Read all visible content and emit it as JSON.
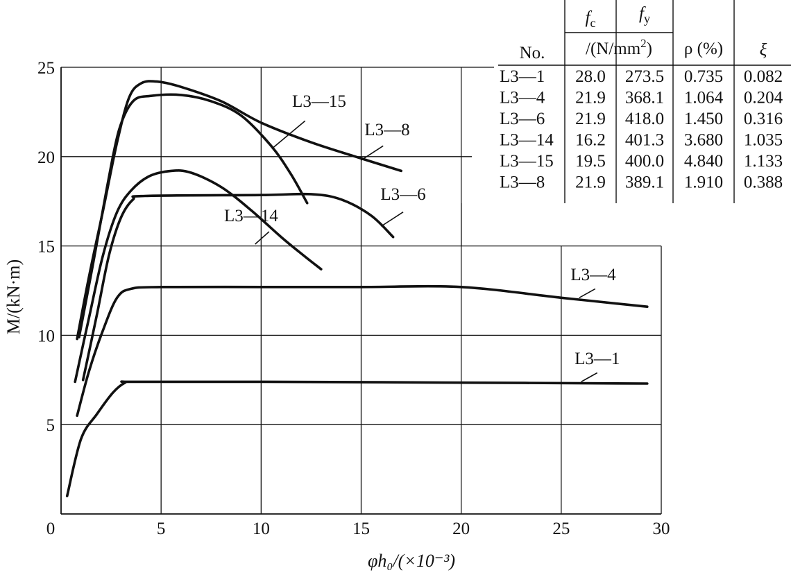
{
  "chart_data": {
    "type": "line",
    "xlabel": "φh₀/(×10⁻³)",
    "ylabel": "M/(kN·m)",
    "x_ticks": [
      "0",
      "5",
      "10",
      "15",
      "20",
      "25",
      "30"
    ],
    "y_ticks": [
      "5",
      "10",
      "15",
      "20",
      "25"
    ],
    "xlim": [
      0,
      30
    ],
    "ylim": [
      0,
      25
    ],
    "grid": true,
    "series": [
      {
        "name": "L3—1",
        "points": [
          [
            0.3,
            1.0
          ],
          [
            1.0,
            4.2
          ],
          [
            1.8,
            5.6
          ],
          [
            2.6,
            6.8
          ],
          [
            3.2,
            7.35
          ],
          [
            3.6,
            7.4
          ],
          [
            10,
            7.4
          ],
          [
            20,
            7.35
          ],
          [
            29.3,
            7.3
          ]
        ]
      },
      {
        "name": "L3—4",
        "points": [
          [
            0.8,
            5.5
          ],
          [
            1.4,
            8.0
          ],
          [
            2.1,
            10.3
          ],
          [
            2.8,
            12.1
          ],
          [
            3.5,
            12.6
          ],
          [
            5,
            12.7
          ],
          [
            10,
            12.7
          ],
          [
            15,
            12.7
          ],
          [
            20,
            12.7
          ],
          [
            25,
            12.1
          ],
          [
            29.3,
            11.6
          ]
        ]
      },
      {
        "name": "L3—6",
        "points": [
          [
            1.1,
            7.5
          ],
          [
            1.8,
            11.2
          ],
          [
            2.4,
            14.5
          ],
          [
            3.0,
            16.6
          ],
          [
            3.6,
            17.6
          ],
          [
            4.2,
            17.8
          ],
          [
            10,
            17.85
          ],
          [
            12.5,
            17.9
          ],
          [
            14,
            17.6
          ],
          [
            15.5,
            16.7
          ],
          [
            16.6,
            15.5
          ]
        ]
      },
      {
        "name": "L3—14",
        "points": [
          [
            0.7,
            7.4
          ],
          [
            1.4,
            11.0
          ],
          [
            2.1,
            14.5
          ],
          [
            2.8,
            16.9
          ],
          [
            3.5,
            18.1
          ],
          [
            4.4,
            18.9
          ],
          [
            5.5,
            19.2
          ],
          [
            6.5,
            19.1
          ],
          [
            8,
            18.3
          ],
          [
            9.5,
            17.0
          ],
          [
            11,
            15.5
          ],
          [
            12.2,
            14.4
          ],
          [
            13,
            13.7
          ]
        ]
      },
      {
        "name": "L3—15",
        "points": [
          [
            0.9,
            9.9
          ],
          [
            1.6,
            14.0
          ],
          [
            2.3,
            18.3
          ],
          [
            2.9,
            21.5
          ],
          [
            3.6,
            23.1
          ],
          [
            4.5,
            23.4
          ],
          [
            6,
            23.45
          ],
          [
            7.5,
            23.1
          ],
          [
            9,
            22.3
          ],
          [
            10.5,
            20.6
          ],
          [
            11.5,
            19.0
          ],
          [
            12.3,
            17.4
          ]
        ]
      },
      {
        "name": "L3—8",
        "points": [
          [
            0.8,
            9.8
          ],
          [
            1.4,
            13.3
          ],
          [
            2.1,
            17.0
          ],
          [
            2.8,
            20.8
          ],
          [
            3.4,
            23.3
          ],
          [
            4.0,
            24.1
          ],
          [
            4.8,
            24.2
          ],
          [
            6,
            23.9
          ],
          [
            8,
            23.1
          ],
          [
            10,
            21.9
          ],
          [
            12.5,
            20.8
          ],
          [
            15,
            19.9
          ],
          [
            17,
            19.2
          ]
        ]
      }
    ],
    "labels": [
      {
        "text": "L3—15",
        "x": 12.9,
        "y": 23.1,
        "leader": [
          [
            12.2,
            22.0
          ],
          [
            10.6,
            20.5
          ]
        ]
      },
      {
        "text": "L3—8",
        "x": 16.3,
        "y": 21.5,
        "leader": [
          [
            16.1,
            20.6
          ],
          [
            15.0,
            19.8
          ]
        ]
      },
      {
        "text": "L3—6",
        "x": 17.1,
        "y": 17.9,
        "leader": [
          [
            17.1,
            16.9
          ],
          [
            16.0,
            16.1
          ]
        ]
      },
      {
        "text": "L3—14",
        "x": 9.5,
        "y": 16.7,
        "leader": [
          [
            10.4,
            15.8
          ],
          [
            9.7,
            15.1
          ]
        ]
      },
      {
        "text": "L3—4",
        "x": 26.6,
        "y": 13.4,
        "leader": [
          [
            26.7,
            12.6
          ],
          [
            25.9,
            12.1
          ]
        ]
      },
      {
        "text": "L3—1",
        "x": 26.8,
        "y": 8.7,
        "leader": [
          [
            26.8,
            7.9
          ],
          [
            26.0,
            7.4
          ]
        ]
      }
    ],
    "table": {
      "headers": {
        "no": "No.",
        "fc": "f",
        "fc_sub": "c",
        "fy": "f",
        "fy_sub": "y",
        "unit_a": "/(N/mm",
        "unit_sup": "2",
        "unit_b": ")",
        "rho": "ρ (%)",
        "xi": "ξ"
      },
      "rows": [
        [
          "L3—1",
          "28.0",
          "273.5",
          "0.735",
          "0.082"
        ],
        [
          "L3—4",
          "21.9",
          "368.1",
          "1.064",
          "0.204"
        ],
        [
          "L3—6",
          "21.9",
          "418.0",
          "1.450",
          "0.316"
        ],
        [
          "L3—14",
          "16.2",
          "401.3",
          "3.680",
          "1.035"
        ],
        [
          "L3—15",
          "19.5",
          "400.0",
          "4.840",
          "1.133"
        ],
        [
          "L3—8",
          "21.9",
          "389.1",
          "1.910",
          "0.388"
        ]
      ]
    }
  }
}
